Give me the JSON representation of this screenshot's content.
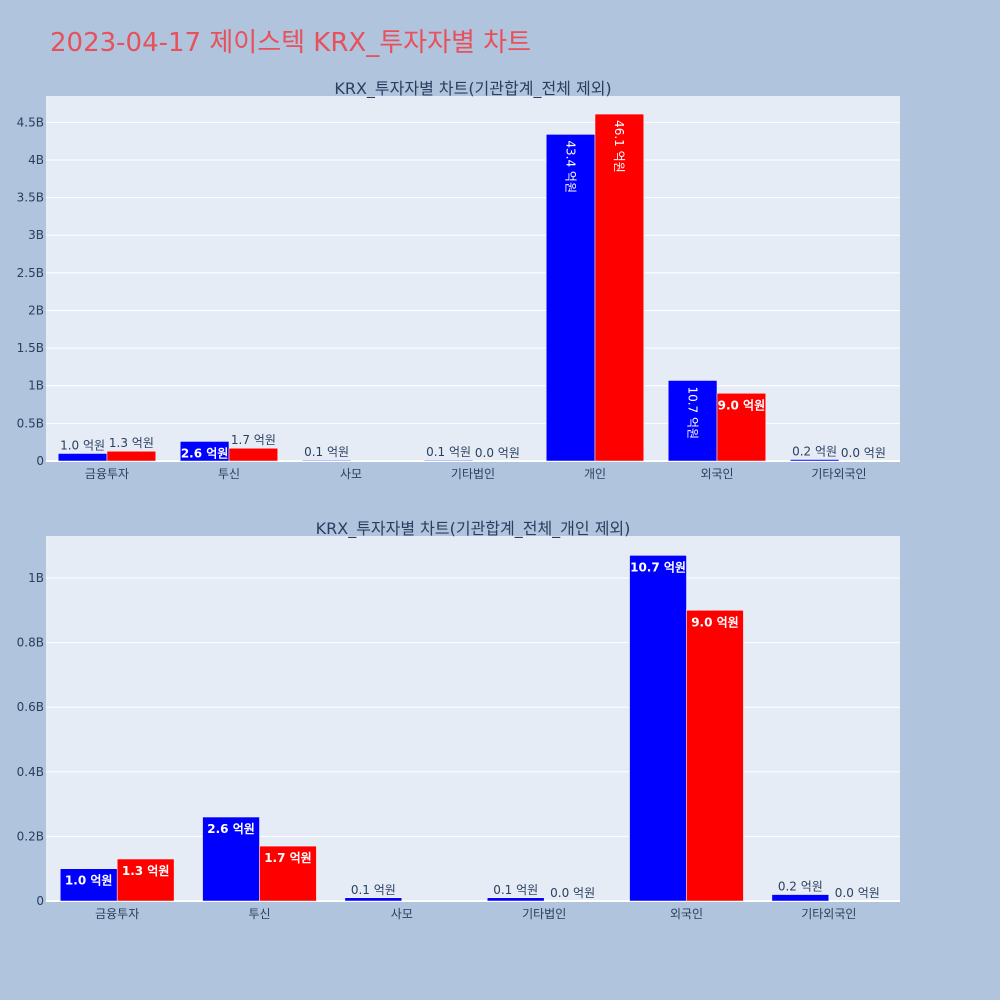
{
  "page_title": "2023-04-17 제이스텍 KRX_투자자별 차트",
  "colors": {
    "series_a": "#0000ff",
    "series_b": "#ff0000",
    "plot_bg": "#e5ecf6",
    "page_bg": "#b0c4de",
    "title": "#e8505b"
  },
  "chart_data": [
    {
      "type": "bar",
      "title": "KRX_투자자별 차트(기관합계_전체 제외)",
      "categories": [
        "금융투자",
        "투신",
        "사모",
        "기타법인",
        "개인",
        "외국인",
        "기타외국인"
      ],
      "series": [
        {
          "color": "#0000ff",
          "values": [
            0.1,
            0.26,
            0.01,
            0.01,
            4.34,
            1.07,
            0.02
          ],
          "labels": [
            "1.0 억원",
            "2.6 억원",
            "0.1 억원",
            "0.1 억원",
            "43.4 억원",
            "10.7 억원",
            "0.2 억원"
          ]
        },
        {
          "color": "#ff0000",
          "values": [
            0.13,
            0.17,
            0,
            0.0,
            4.61,
            0.9,
            0.0
          ],
          "labels": [
            "1.3 억원",
            "1.7 억원",
            "",
            "0.0 억원",
            "46.1 억원",
            "9.0 억원",
            "0.0 억원"
          ]
        }
      ],
      "yticks": [
        "0",
        "0.5B",
        "1B",
        "1.5B",
        "2B",
        "2.5B",
        "3B",
        "3.5B",
        "4B",
        "4.5B"
      ],
      "ytick_values": [
        0,
        0.5,
        1,
        1.5,
        2,
        2.5,
        3,
        3.5,
        4,
        4.5
      ],
      "ylim": [
        0,
        4.85
      ],
      "grid": true
    },
    {
      "type": "bar",
      "title": "KRX_투자자별 차트(기관합계_전체_개인 제외)",
      "categories": [
        "금융투자",
        "투신",
        "사모",
        "기타법인",
        "외국인",
        "기타외국인"
      ],
      "series": [
        {
          "color": "#0000ff",
          "values": [
            0.1,
            0.26,
            0.01,
            0.01,
            1.07,
            0.02
          ],
          "labels": [
            "1.0 억원",
            "2.6 억원",
            "0.1 억원",
            "0.1 억원",
            "10.7 억원",
            "0.2 억원"
          ]
        },
        {
          "color": "#ff0000",
          "values": [
            0.13,
            0.17,
            0,
            0.0,
            0.9,
            0.0
          ],
          "labels": [
            "1.3 억원",
            "1.7 억원",
            "",
            "0.0 억원",
            "9.0 억원",
            "0.0 억원"
          ]
        }
      ],
      "yticks": [
        "0",
        "0.2B",
        "0.4B",
        "0.6B",
        "0.8B",
        "1B"
      ],
      "ytick_values": [
        0,
        0.2,
        0.4,
        0.6,
        0.8,
        1.0
      ],
      "ylim": [
        0,
        1.13
      ],
      "grid": true
    }
  ]
}
